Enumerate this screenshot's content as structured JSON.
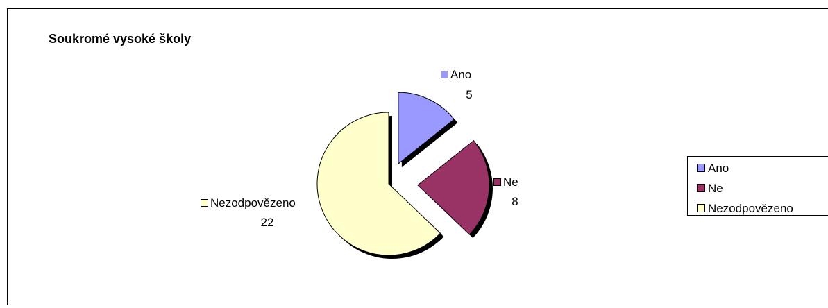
{
  "chart_data": {
    "type": "pie",
    "title": "Soukromé vysoké školy",
    "categories": [
      "Ano",
      "Ne",
      "Nezodpovězeno"
    ],
    "values": [
      5,
      8,
      22
    ],
    "colors": [
      "#9999ff",
      "#993366",
      "#ffffcc"
    ],
    "legend": "right"
  }
}
